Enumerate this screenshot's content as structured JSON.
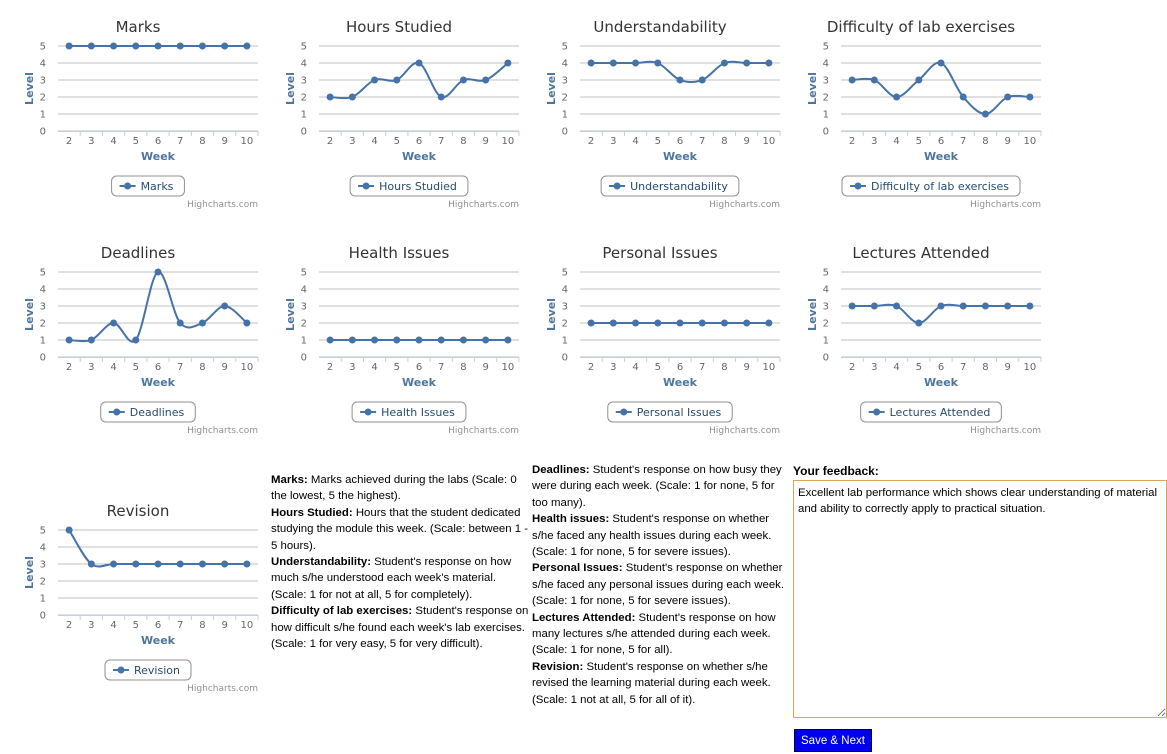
{
  "chart_data": [
    {
      "type": "line",
      "title": "Marks",
      "y_label": "Level",
      "x_label": "Week",
      "credits": "Highcharts.com",
      "categories": [
        "2",
        "3",
        "4",
        "5",
        "6",
        "7",
        "8",
        "9",
        "10"
      ],
      "ylim": [
        0,
        5
      ],
      "yticks": [
        0,
        1,
        2,
        3,
        4,
        5
      ],
      "grid": true,
      "smooth": true,
      "series": [
        {
          "name": "Marks",
          "color": "#4572a7",
          "values": [
            5,
            5,
            5,
            5,
            5,
            5,
            5,
            5,
            5
          ]
        }
      ]
    },
    {
      "type": "line",
      "title": "Hours Studied",
      "y_label": "Level",
      "x_label": "Week",
      "credits": "Highcharts.com",
      "categories": [
        "2",
        "3",
        "4",
        "5",
        "6",
        "7",
        "8",
        "9",
        "10"
      ],
      "ylim": [
        0,
        5
      ],
      "yticks": [
        0,
        1,
        2,
        3,
        4,
        5
      ],
      "grid": true,
      "smooth": true,
      "series": [
        {
          "name": "Hours Studied",
          "color": "#4572a7",
          "values": [
            2,
            2,
            3,
            3,
            4,
            2,
            3,
            3,
            4
          ]
        }
      ]
    },
    {
      "type": "line",
      "title": "Understandability",
      "y_label": "Level",
      "x_label": "Week",
      "credits": "Highcharts.com",
      "categories": [
        "2",
        "3",
        "4",
        "5",
        "6",
        "7",
        "8",
        "9",
        "10"
      ],
      "ylim": [
        0,
        5
      ],
      "yticks": [
        0,
        1,
        2,
        3,
        4,
        5
      ],
      "grid": true,
      "smooth": true,
      "series": [
        {
          "name": "Understandability",
          "color": "#4572a7",
          "values": [
            4,
            4,
            4,
            4,
            3,
            3,
            4,
            4,
            4
          ]
        }
      ]
    },
    {
      "type": "line",
      "title": "Difficulty of lab exercises",
      "y_label": "Level",
      "x_label": "Week",
      "credits": "Highcharts.com",
      "categories": [
        "2",
        "3",
        "4",
        "5",
        "6",
        "7",
        "8",
        "9",
        "10"
      ],
      "ylim": [
        0,
        5
      ],
      "yticks": [
        0,
        1,
        2,
        3,
        4,
        5
      ],
      "grid": true,
      "smooth": true,
      "series": [
        {
          "name": "Difficulty of lab exercises",
          "color": "#4572a7",
          "values": [
            3,
            3,
            2,
            3,
            4,
            2,
            1,
            2,
            2
          ]
        }
      ]
    },
    {
      "type": "line",
      "title": "Deadlines",
      "y_label": "Level",
      "x_label": "Week",
      "credits": "Highcharts.com",
      "categories": [
        "2",
        "3",
        "4",
        "5",
        "6",
        "7",
        "8",
        "9",
        "10"
      ],
      "ylim": [
        0,
        5
      ],
      "yticks": [
        0,
        1,
        2,
        3,
        4,
        5
      ],
      "grid": true,
      "smooth": true,
      "series": [
        {
          "name": "Deadlines",
          "color": "#4572a7",
          "values": [
            1,
            1,
            2,
            1,
            5,
            2,
            2,
            3,
            2
          ]
        }
      ]
    },
    {
      "type": "line",
      "title": "Health Issues",
      "y_label": "Level",
      "x_label": "Week",
      "credits": "Highcharts.com",
      "categories": [
        "2",
        "3",
        "4",
        "5",
        "6",
        "7",
        "8",
        "9",
        "10"
      ],
      "ylim": [
        0,
        5
      ],
      "yticks": [
        0,
        1,
        2,
        3,
        4,
        5
      ],
      "grid": true,
      "smooth": true,
      "series": [
        {
          "name": "Health Issues",
          "color": "#4572a7",
          "values": [
            1,
            1,
            1,
            1,
            1,
            1,
            1,
            1,
            1
          ]
        }
      ]
    },
    {
      "type": "line",
      "title": "Personal Issues",
      "y_label": "Level",
      "x_label": "Week",
      "credits": "Highcharts.com",
      "categories": [
        "2",
        "3",
        "4",
        "5",
        "6",
        "7",
        "8",
        "9",
        "10"
      ],
      "ylim": [
        0,
        5
      ],
      "yticks": [
        0,
        1,
        2,
        3,
        4,
        5
      ],
      "grid": true,
      "smooth": true,
      "series": [
        {
          "name": "Personal Issues",
          "color": "#4572a7",
          "values": [
            2,
            2,
            2,
            2,
            2,
            2,
            2,
            2,
            2
          ]
        }
      ]
    },
    {
      "type": "line",
      "title": "Lectures Attended",
      "y_label": "Level",
      "x_label": "Week",
      "credits": "Highcharts.com",
      "categories": [
        "2",
        "3",
        "4",
        "5",
        "6",
        "7",
        "8",
        "9",
        "10"
      ],
      "ylim": [
        0,
        5
      ],
      "yticks": [
        0,
        1,
        2,
        3,
        4,
        5
      ],
      "grid": true,
      "smooth": true,
      "series": [
        {
          "name": "Lectures Attended",
          "color": "#4572a7",
          "values": [
            3,
            3,
            3,
            2,
            3,
            3,
            3,
            3,
            3
          ]
        }
      ]
    },
    {
      "type": "line",
      "title": "Revision",
      "y_label": "Level",
      "x_label": "Week",
      "credits": "Highcharts.com",
      "categories": [
        "2",
        "3",
        "4",
        "5",
        "6",
        "7",
        "8",
        "9",
        "10"
      ],
      "ylim": [
        0,
        5
      ],
      "yticks": [
        0,
        1,
        2,
        3,
        4,
        5
      ],
      "grid": true,
      "smooth": true,
      "series": [
        {
          "name": "Revision",
          "color": "#4572a7",
          "values": [
            5,
            3,
            3,
            3,
            3,
            3,
            3,
            3,
            3
          ]
        }
      ]
    }
  ],
  "descriptions": [
    [
      {
        "term": "Marks:",
        "text": "Marks achieved during the labs (Scale: 0 the lowest, 5 the highest)."
      },
      {
        "term": "Hours Studied:",
        "text": "Hours that the student dedicated studying the module this week. (Scale: between 1 - 5 hours)."
      },
      {
        "term": "Understandability:",
        "text": "Student's response on how much s/he understood each week's material. (Scale: 1 for not at all, 5 for completely)."
      },
      {
        "term": "Difficulty of lab exercises:",
        "text": "Student's response on how difficult s/he found each week's lab exercises. (Scale: 1 for very easy, 5 for very difficult)."
      }
    ],
    [
      {
        "term": "Deadlines:",
        "text": "Student's response on how busy they were during each week. (Scale: 1 for none, 5 for too many)."
      },
      {
        "term": "Health issues:",
        "text": "Student's response on whether s/he faced any health issues during each week. (Scale: 1 for none, 5 for severe issues)."
      },
      {
        "term": "Personal Issues:",
        "text": "Student's response on whether s/he faced any personal issues during each week. (Scale: 1 for none, 5 for severe issues)."
      },
      {
        "term": "Lectures Attended:",
        "text": "Student's response on how many lectures s/he attended during each week. (Scale: 1 for none, 5 for all)."
      },
      {
        "term": "Revision:",
        "text": "Student's response on whether s/he revised the learning material during each week. (Scale: 1 not at all, 5 for all of it)."
      }
    ]
  ],
  "feedback": {
    "label": "Your feedback:",
    "text": "Excellent lab performance which shows clear understanding of material and ability to correctly apply to practical situation.",
    "button": "Save & Next"
  }
}
